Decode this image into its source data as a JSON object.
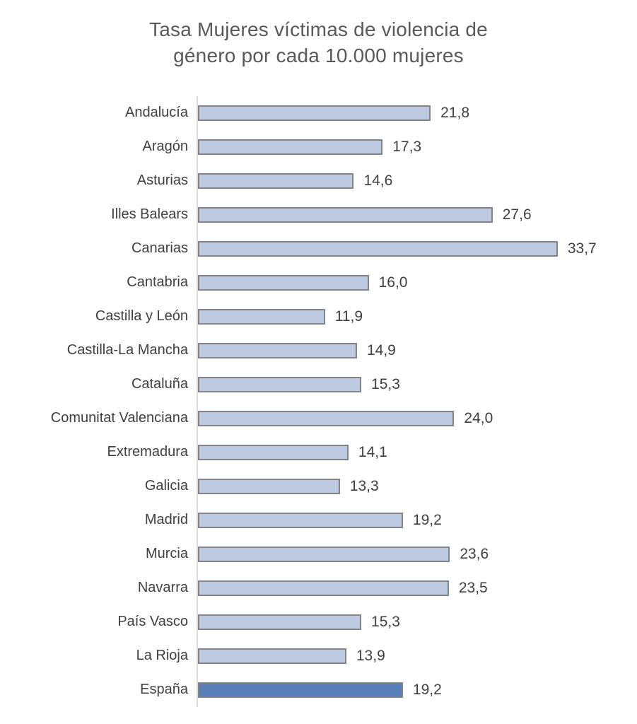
{
  "title_line1": "Tasa Mujeres víctimas de violencia de",
  "title_line2": "género por cada 10.000 mujeres",
  "chart_data": {
    "type": "bar",
    "orientation": "horizontal",
    "title": "Tasa Mujeres víctimas de violencia de género por cada 10.000 mujeres",
    "categories": [
      "Andalucía",
      "Aragón",
      "Asturias",
      "Illes Balears",
      "Canarias",
      "Cantabria",
      "Castilla y León",
      "Castilla-La Mancha",
      "Cataluña",
      "Comunitat Valenciana",
      "Extremadura",
      "Galicia",
      "Madrid",
      "Murcia",
      "Navarra",
      "País Vasco",
      "La Rioja",
      "España"
    ],
    "values": [
      21.8,
      17.3,
      14.6,
      27.6,
      33.7,
      16.0,
      11.9,
      14.9,
      15.3,
      24.0,
      14.1,
      13.3,
      19.2,
      23.6,
      23.5,
      15.3,
      13.9,
      19.2
    ],
    "value_labels": [
      "21,8",
      "17,3",
      "14,6",
      "27,6",
      "33,7",
      "16,0",
      "11,9",
      "14,9",
      "15,3",
      "24,0",
      "14,1",
      "13,3",
      "19,2",
      "23,6",
      "23,5",
      "15,3",
      "13,9",
      "19,2"
    ],
    "xlabel": "",
    "ylabel": "",
    "xlim": [
      0,
      35
    ],
    "grid": false,
    "legend": false,
    "data_labels": true,
    "highlight_category": "España",
    "bar_color": "#bdcbe2",
    "bar_border_color": "#848484",
    "highlight_color": "#587fb8",
    "axis_line_color": "#d9d9d9",
    "title_color": "#595959",
    "label_color": "#404040"
  }
}
